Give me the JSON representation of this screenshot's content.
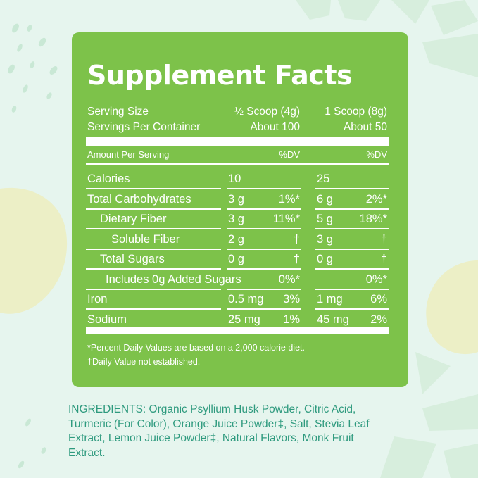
{
  "colors": {
    "background": "#e6f5ee",
    "panel": "#7dc24a",
    "ingredients_text": "#2e9a7e",
    "lemon": "#ecefc6"
  },
  "facts": {
    "title": "Supplement Facts",
    "serving_size_label": "Serving Size",
    "serving_size_half": "½ Scoop (4g)",
    "serving_size_full": "1 Scoop (8g)",
    "servings_label": "Servings Per Container",
    "servings_half": "About 100",
    "servings_full": "About 50",
    "amount_per_serving": "Amount Per Serving",
    "dv_header": "%DV",
    "rows": [
      {
        "name": "Calories",
        "amt1": "10",
        "dv1": "",
        "amt2": "25",
        "dv2": ""
      },
      {
        "name": "Total Carbohydrates",
        "amt1": "3 g",
        "dv1": "1%*",
        "amt2": "6 g",
        "dv2": "2%*"
      },
      {
        "name": "Dietary Fiber",
        "amt1": "3 g",
        "dv1": "11%*",
        "amt2": "5 g",
        "dv2": "18%*"
      },
      {
        "name": "Soluble Fiber",
        "amt1": "2 g",
        "dv1": "†",
        "amt2": "3 g",
        "dv2": "†"
      },
      {
        "name": "Total Sugars",
        "amt1": "0 g",
        "dv1": "†",
        "amt2": "0 g",
        "dv2": "†"
      },
      {
        "name": "Includes 0g Added Sugars",
        "amt1": "",
        "dv1": "0%*",
        "amt2": "",
        "dv2": "0%*"
      },
      {
        "name": "Iron",
        "amt1": "0.5 mg",
        "dv1": "3%",
        "amt2": "1 mg",
        "dv2": "6%"
      },
      {
        "name": "Sodium",
        "amt1": "25 mg",
        "dv1": "1%",
        "amt2": "45 mg",
        "dv2": "2%"
      }
    ],
    "footnote_1": "*Percent Daily Values are based on a 2,000 calorie diet.",
    "footnote_2": "†Daily Value not established."
  },
  "ingredients": {
    "line_1": "INGREDIENTS: Organic Psyllium Husk Powder, Citric Acid,",
    "line_2": "Turmeric (For Color), Orange Juice Powder‡, Salt, Stevia Leaf",
    "line_3": "Extract, Lemon Juice Powder‡, Natural Flavors, Monk Fruit",
    "line_4": "Extract."
  }
}
